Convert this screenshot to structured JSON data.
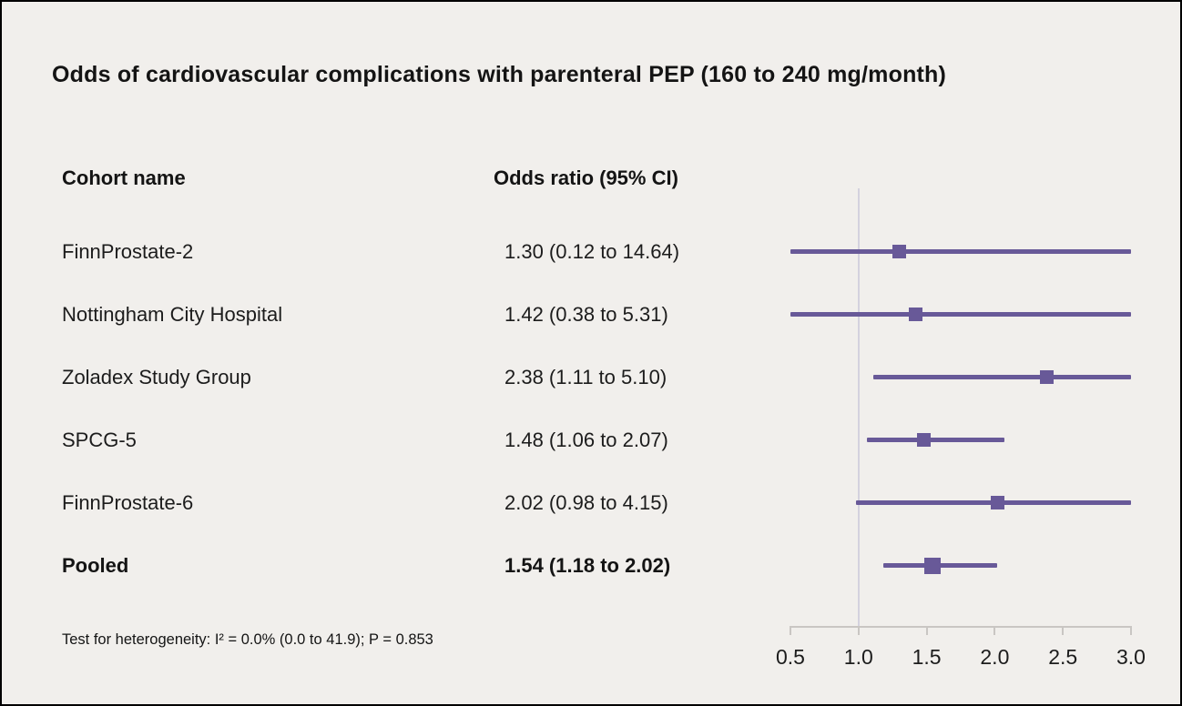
{
  "title": "Odds of cardiovascular complications with parenteral PEP (160 to 240 mg/month)",
  "columns": {
    "cohort": "Cohort name",
    "odds": "Odds ratio (95% CI)"
  },
  "footnote": "Test for heterogeneity: I² = 0.0% (0.0 to 41.9); P = 0.853",
  "colors": {
    "accent": "#685998",
    "reference_line": "#d4d2de",
    "axis": "#c9c6c3",
    "background": "#f1efec",
    "text": "#141414"
  },
  "chart_data": {
    "type": "forest",
    "title": "Odds of cardiovascular complications with parenteral PEP (160 to 240 mg/month)",
    "xlim": [
      0.5,
      3.0
    ],
    "x_ticks": [
      "0.5",
      "1.0",
      "1.5",
      "2.0",
      "2.5",
      "3.0"
    ],
    "x_tick_values": [
      0.5,
      1.0,
      1.5,
      2.0,
      2.5,
      3.0
    ],
    "reference_value": 1.0,
    "grid": false,
    "rows": [
      {
        "label": "FinnProstate-2",
        "display": "1.30 (0.12 to 14.64)",
        "estimate": 1.3,
        "ci_low": 0.12,
        "ci_high": 14.64,
        "pooled": false
      },
      {
        "label": "Nottingham City Hospital",
        "display": "1.42 (0.38 to 5.31)",
        "estimate": 1.42,
        "ci_low": 0.38,
        "ci_high": 5.31,
        "pooled": false
      },
      {
        "label": "Zoladex Study Group",
        "display": "2.38 (1.11 to 5.10)",
        "estimate": 2.38,
        "ci_low": 1.11,
        "ci_high": 5.1,
        "pooled": false
      },
      {
        "label": "SPCG-5",
        "display": "1.48 (1.06 to 2.07)",
        "estimate": 1.48,
        "ci_low": 1.06,
        "ci_high": 2.07,
        "pooled": false
      },
      {
        "label": "FinnProstate-6",
        "display": "2.02 (0.98 to 4.15)",
        "estimate": 2.02,
        "ci_low": 0.98,
        "ci_high": 4.15,
        "pooled": false
      },
      {
        "label": "Pooled",
        "display": "1.54 (1.18 to 2.02)",
        "estimate": 1.54,
        "ci_low": 1.18,
        "ci_high": 2.02,
        "pooled": true
      }
    ]
  }
}
